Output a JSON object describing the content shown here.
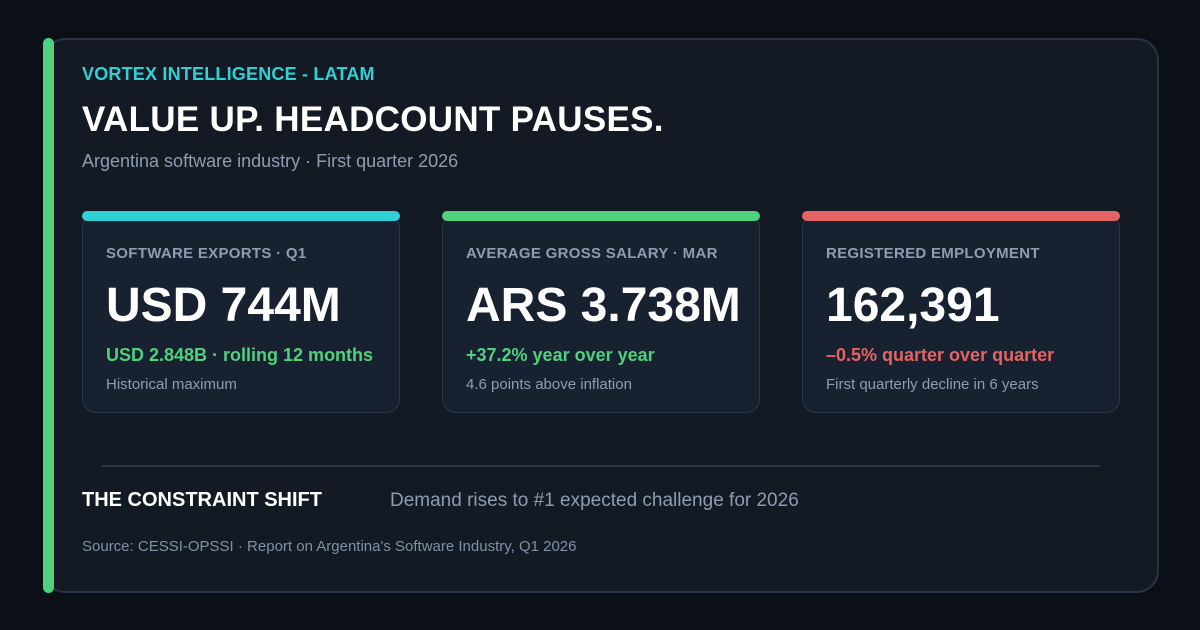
{
  "header": {
    "eyebrow": "VORTEX INTELLIGENCE - LATAM",
    "headline": "VALUE UP. HEADCOUNT PAUSES.",
    "subhead": "Argentina software industry · First quarter 2026"
  },
  "colors": {
    "background": "#0b0f16",
    "panel": "#131a24",
    "card": "#182130",
    "accent_green": "#4fd17e",
    "accent_cyan": "#2fd1d6",
    "accent_red": "#e46464",
    "muted_text": "#8f9bb0"
  },
  "cards": [
    {
      "label": "SOFTWARE EXPORTS · Q1",
      "value": "USD 744M",
      "delta": "USD 2.848B · rolling 12 months",
      "note": "Historical maximum",
      "stripe_color": "#2fd1d6",
      "delta_color": "#4fd17e"
    },
    {
      "label": "AVERAGE GROSS SALARY · MAR",
      "value": "ARS 3.738M",
      "delta": "+37.2% year over year",
      "note": "4.6 points above inflation",
      "stripe_color": "#4fd17e",
      "delta_color": "#4fd17e"
    },
    {
      "label": "REGISTERED EMPLOYMENT",
      "value": "162,391",
      "delta": "–0.5% quarter over quarter",
      "note": "First quarterly decline in 6 years",
      "stripe_color": "#e46464",
      "delta_color": "#e46464"
    }
  ],
  "shift": {
    "title": "THE CONSTRAINT SHIFT",
    "text": "Demand rises to #1 expected challenge for 2026"
  },
  "source": "Source: CESSI-OPSSI · Report on Argentina's Software Industry, Q1 2026"
}
